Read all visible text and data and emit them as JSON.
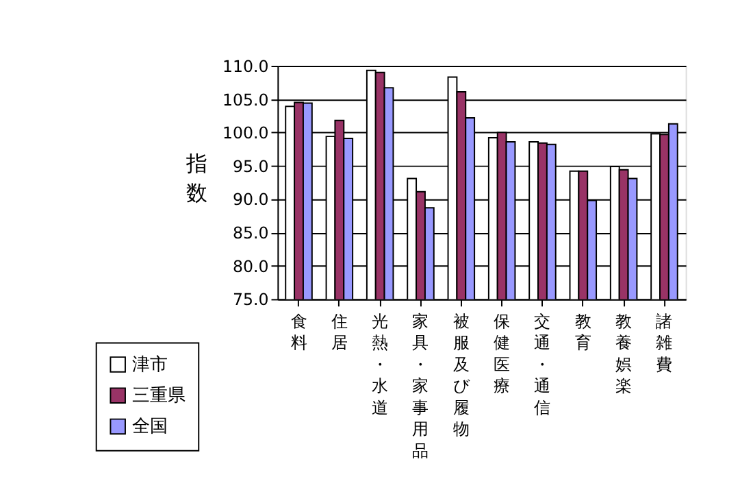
{
  "chart_data": {
    "type": "bar",
    "ylabel": "指数",
    "categories": [
      "食料",
      "住居",
      "光熱・水道",
      "家具・家事用品",
      "被服及び履物",
      "保健医療",
      "交通・通信",
      "教育",
      "教養娯楽",
      "諸雑費"
    ],
    "series": [
      {
        "name": "津市",
        "color": "#ffffff",
        "values": [
          103.9,
          99.4,
          109.3,
          93.1,
          108.3,
          99.2,
          98.6,
          94.2,
          94.9,
          99.8
        ]
      },
      {
        "name": "三重県",
        "color": "#993366",
        "values": [
          104.5,
          101.8,
          109.0,
          91.1,
          106.1,
          100.0,
          98.4,
          94.2,
          94.4,
          99.7
        ]
      },
      {
        "name": "全国",
        "color": "#9999ff",
        "values": [
          104.4,
          99.1,
          106.7,
          88.7,
          102.2,
          98.6,
          98.2,
          89.8,
          93.1,
          101.3
        ]
      }
    ],
    "ylim": [
      75,
      110
    ],
    "yticks": [
      {
        "value": 75,
        "label": "75.0"
      },
      {
        "value": 80,
        "label": "80.0"
      },
      {
        "value": 85,
        "label": "85.0"
      },
      {
        "value": 90,
        "label": "90.0"
      },
      {
        "value": 95,
        "label": "95.0"
      },
      {
        "value": 100,
        "label": "100.0"
      },
      {
        "value": 105,
        "label": "105.0"
      },
      {
        "value": 110,
        "label": "110.0"
      }
    ],
    "grid": "y",
    "legend": "bottom left"
  }
}
